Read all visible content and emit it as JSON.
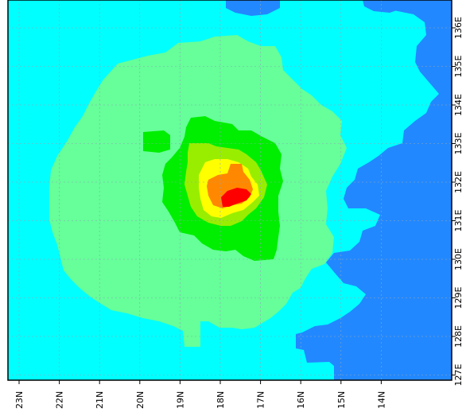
{
  "colors": {
    "background": "#ffffff",
    "frame": "#000000",
    "grid": "#8fa6b8",
    "levels": [
      "#00ffff",
      "#66ff99",
      "#00ee00",
      "#99ee00",
      "#ffff00",
      "#ff8800",
      "#ff0000",
      "#2288ff"
    ]
  },
  "map": {
    "lat_labels": [
      "23N",
      "22N",
      "21N",
      "20N",
      "19N",
      "18N",
      "17N",
      "16N",
      "15N",
      "14N"
    ],
    "lon_labels": [
      "136E",
      "135E",
      "134E",
      "133E",
      "132E",
      "131E",
      "130E",
      "129E",
      "128E",
      "127E"
    ]
  }
}
